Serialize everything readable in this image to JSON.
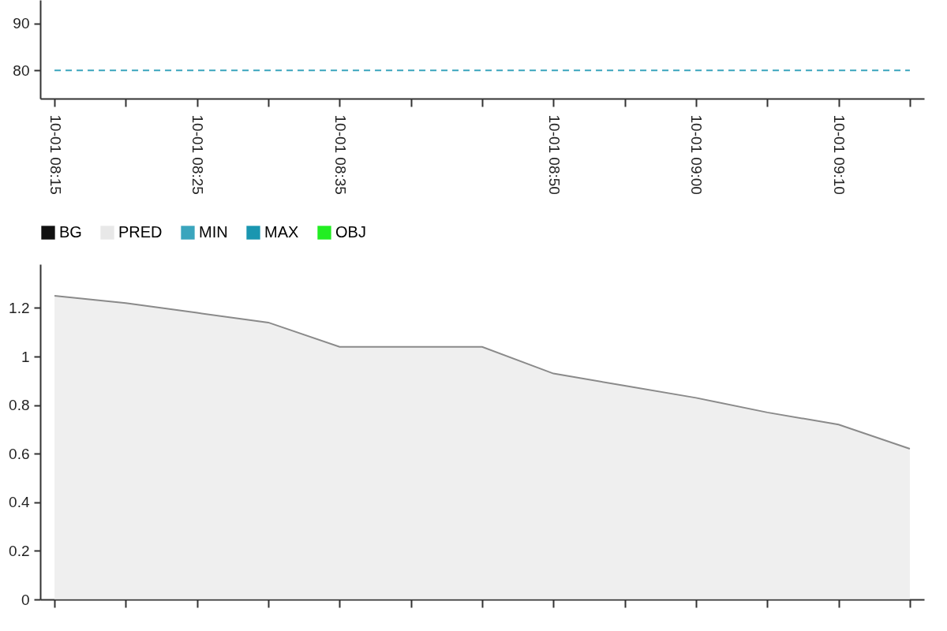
{
  "chart_data": [
    {
      "type": "line",
      "ylim": [
        74,
        95
      ],
      "yticks": [
        80,
        90
      ],
      "categories": [
        "10-01 08:15",
        null,
        "10-01 08:25",
        null,
        "10-01 08:35",
        null,
        null,
        "10-01 08:50",
        null,
        "10-01 09:00",
        null,
        "10-01 09:10",
        null
      ],
      "series": [
        {
          "name": "BG",
          "color": "#111111",
          "values": [
            null,
            null,
            null,
            null,
            null,
            null,
            null,
            null,
            null,
            null,
            null,
            null,
            null
          ]
        },
        {
          "name": "PRED",
          "color": "#e8e8e8",
          "values": [
            null,
            null,
            null,
            null,
            null,
            null,
            null,
            null,
            null,
            null,
            null,
            null,
            null
          ]
        },
        {
          "name": "MIN",
          "color": "#3aa5bd",
          "line_style": "dashed",
          "values": [
            80,
            80,
            80,
            80,
            80,
            80,
            80,
            80,
            80,
            80,
            80,
            80,
            80
          ]
        },
        {
          "name": "MAX",
          "color": "#1a96b0",
          "values": [
            null,
            null,
            null,
            null,
            null,
            null,
            null,
            null,
            null,
            null,
            null,
            null,
            null
          ]
        },
        {
          "name": "OBJ",
          "color": "#22ee22",
          "values": [
            null,
            null,
            null,
            null,
            null,
            null,
            null,
            null,
            null,
            null,
            null,
            null,
            null
          ]
        }
      ],
      "legend": "bottom",
      "grid": false
    },
    {
      "type": "area",
      "ylim": [
        0,
        1.38
      ],
      "yticks": [
        0,
        0.2,
        0.4,
        0.6,
        0.8,
        1,
        1.2
      ],
      "categories": [
        null,
        null,
        null,
        null,
        null,
        null,
        null,
        null,
        null,
        null,
        null,
        null,
        null
      ],
      "series": [
        {
          "color": "#e8e8e8",
          "values": [
            1.25,
            1.22,
            1.18,
            1.14,
            1.04,
            1.04,
            1.04,
            0.93,
            0.88,
            0.83,
            0.77,
            0.72,
            0.62
          ]
        }
      ],
      "tick_labels": "y",
      "grid": false
    }
  ]
}
